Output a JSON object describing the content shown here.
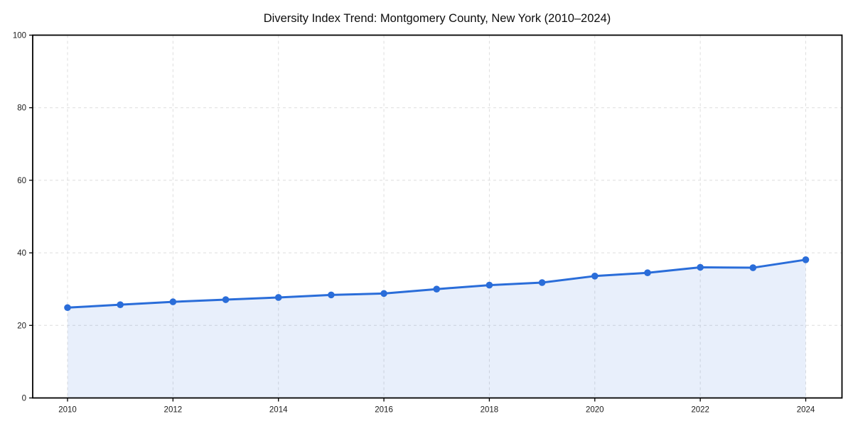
{
  "page": {
    "background": "#ffffff"
  },
  "chart_data": {
    "type": "line",
    "title": "Diversity Index Trend: Montgomery County, New York (2010–2024)",
    "series": [
      {
        "name": "Diversity Index",
        "x": [
          2010,
          2011,
          2012,
          2013,
          2014,
          2015,
          2016,
          2017,
          2018,
          2019,
          2020,
          2021,
          2022,
          2023,
          2024
        ],
        "values": [
          24.9,
          25.7,
          26.5,
          27.1,
          27.7,
          28.4,
          28.8,
          30.0,
          31.1,
          31.8,
          33.6,
          34.5,
          36.0,
          35.9,
          38.1
        ]
      }
    ],
    "xticks": [
      2010,
      2012,
      2014,
      2016,
      2018,
      2020,
      2022,
      2024
    ],
    "yticks": [
      0,
      20,
      40,
      60,
      80,
      100
    ],
    "ylim": [
      0,
      100
    ],
    "xlabel": "",
    "ylabel": "",
    "grid": true,
    "legend_position": "none",
    "style": {
      "line_color": "#2a6dd9",
      "marker_color": "#2a6dd9",
      "fill_color": "rgba(42,109,217,0.11)",
      "grid_color": "#dedede",
      "axis_color": "#000000",
      "marker_shape": "circle"
    }
  }
}
